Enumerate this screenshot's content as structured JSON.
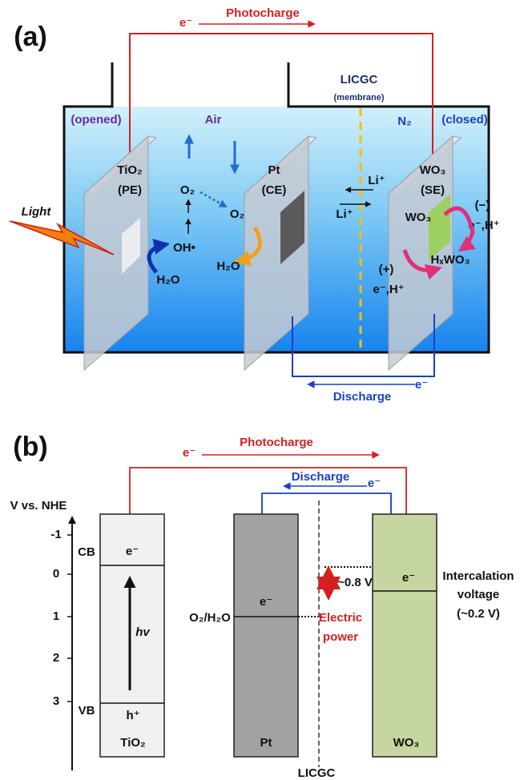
{
  "panel_a": {
    "label": "(a)",
    "photocharge": {
      "electron": "e⁻",
      "label": "Photocharge"
    },
    "membrane": {
      "name": "LICGC",
      "note": "(membrane)"
    },
    "compartments": {
      "left_state": "(opened)",
      "left_gas": "Air",
      "right_gas": "N₂",
      "right_state": "(closed)"
    },
    "electrodes": [
      {
        "material": "TiO₂",
        "role": "(PE)"
      },
      {
        "material": "Pt",
        "role": "(CE)"
      },
      {
        "material": "WO₃",
        "role": "(SE)"
      }
    ],
    "light": "Light",
    "pe_species": {
      "o2": "O₂",
      "oh": "OH•",
      "h2o": "H₂O"
    },
    "ce_species": {
      "o2": "O₂",
      "h2o": "H₂O"
    },
    "ions": [
      "Li⁺",
      "Li⁺"
    ],
    "se_species": {
      "wo3": "WO₃",
      "minus": "(−)",
      "minus_ions": "e⁻,H⁺",
      "hxwo3": "HₓWO₃",
      "plus": "(+)",
      "plus_ions": "e⁻,H⁺"
    },
    "discharge": {
      "electron": "e⁻",
      "label": "Discharge"
    }
  },
  "panel_b": {
    "label": "(b)",
    "photocharge": {
      "electron": "e⁻",
      "label": "Photocharge"
    },
    "discharge": {
      "label": "Discharge",
      "electron": "e⁻"
    },
    "axis_label": "V vs. NHE",
    "ticks": [
      "-1",
      "0",
      "1",
      "2",
      "3"
    ],
    "band_labels": {
      "cb": "CB",
      "vb": "VB"
    },
    "tio2": {
      "electron": "e⁻",
      "photon": "hv",
      "hole": "h⁺",
      "name": "TiO₂"
    },
    "pt": {
      "electron": "e⁻",
      "couple": "O₂/H₂O",
      "name": "Pt"
    },
    "membrane": "LICGC",
    "voltage": {
      "gap": "~0.8 V",
      "power": [
        "Electric",
        "power"
      ]
    },
    "wo3": {
      "electron": "e⁻",
      "name": "WO₃",
      "note": [
        "Intercalation",
        "voltage",
        "(~0.2 V)"
      ]
    }
  }
}
